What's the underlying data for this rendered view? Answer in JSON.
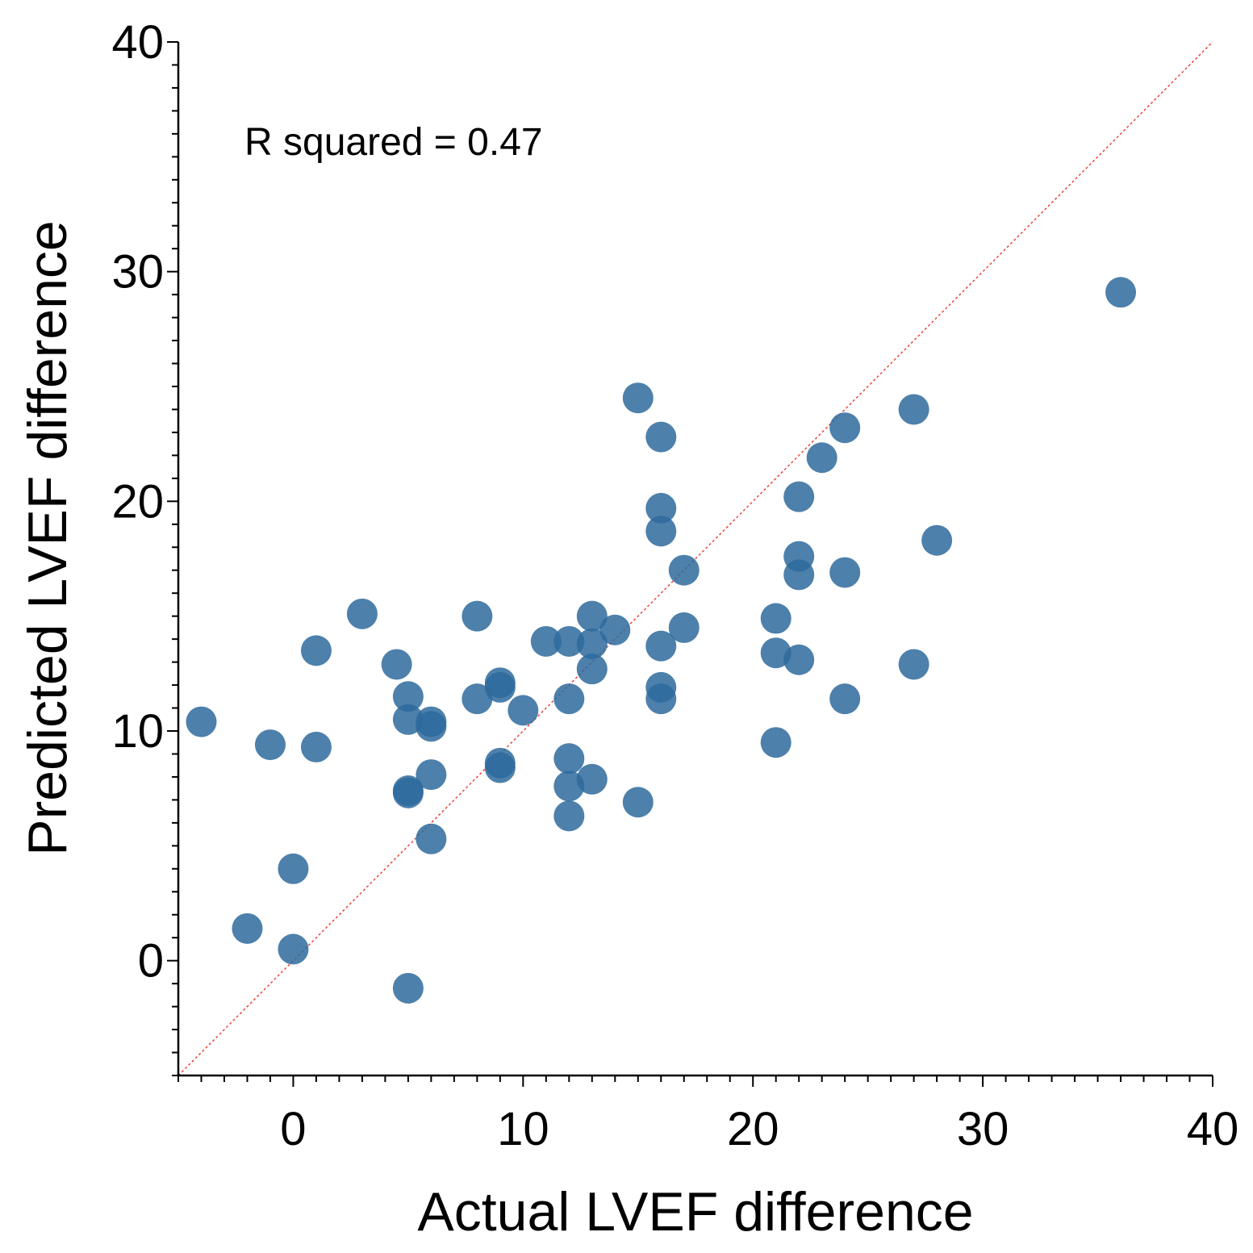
{
  "chart_data": {
    "type": "scatter",
    "xlabel": "Actual LVEF difference",
    "ylabel": "Predicted LVEF difference",
    "xlim": [
      -5,
      40
    ],
    "ylim": [
      -5,
      40
    ],
    "x_ticks": [
      0,
      10,
      20,
      30,
      40
    ],
    "y_ticks": [
      0,
      10,
      20,
      30,
      40
    ],
    "x_tick_labels": [
      "0",
      "10",
      "20",
      "30",
      "40"
    ],
    "y_tick_labels": [
      "0",
      "10",
      "20",
      "30",
      "40"
    ],
    "minor_tick_step": 1,
    "grid": false,
    "annotation": "R squared = 0.47",
    "reference_line": {
      "type": "identity",
      "color": "#e8443a",
      "style": "dotted"
    },
    "marker_color": "#2e6a9c",
    "points": [
      {
        "x": -4,
        "y": 10.4
      },
      {
        "x": -1,
        "y": 9.4
      },
      {
        "x": 1,
        "y": 13.5
      },
      {
        "x": 1,
        "y": 9.3
      },
      {
        "x": 3,
        "y": 15.1
      },
      {
        "x": 0,
        "y": 4.0
      },
      {
        "x": -2,
        "y": 1.4
      },
      {
        "x": 0,
        "y": 0.5
      },
      {
        "x": 4.5,
        "y": 12.9
      },
      {
        "x": 5,
        "y": 11.5
      },
      {
        "x": 5,
        "y": 10.5
      },
      {
        "x": 5,
        "y": 7.4
      },
      {
        "x": 5,
        "y": 7.3
      },
      {
        "x": 5,
        "y": -1.2
      },
      {
        "x": 6,
        "y": 10.4
      },
      {
        "x": 6,
        "y": 10.2
      },
      {
        "x": 6,
        "y": 8.1
      },
      {
        "x": 6,
        "y": 5.3
      },
      {
        "x": 8,
        "y": 15.0
      },
      {
        "x": 8,
        "y": 11.4
      },
      {
        "x": 9,
        "y": 12.1
      },
      {
        "x": 9,
        "y": 11.9
      },
      {
        "x": 9,
        "y": 8.6
      },
      {
        "x": 9,
        "y": 8.4
      },
      {
        "x": 10,
        "y": 10.9
      },
      {
        "x": 11,
        "y": 13.9
      },
      {
        "x": 12,
        "y": 13.9
      },
      {
        "x": 12,
        "y": 11.4
      },
      {
        "x": 12,
        "y": 8.8
      },
      {
        "x": 12,
        "y": 7.6
      },
      {
        "x": 12,
        "y": 6.3
      },
      {
        "x": 13,
        "y": 15.0
      },
      {
        "x": 13,
        "y": 13.8
      },
      {
        "x": 13,
        "y": 12.7
      },
      {
        "x": 13,
        "y": 7.9
      },
      {
        "x": 14,
        "y": 14.4
      },
      {
        "x": 15,
        "y": 24.5
      },
      {
        "x": 15,
        "y": 6.9
      },
      {
        "x": 16,
        "y": 22.8
      },
      {
        "x": 16,
        "y": 19.7
      },
      {
        "x": 16,
        "y": 18.7
      },
      {
        "x": 16,
        "y": 13.7
      },
      {
        "x": 16,
        "y": 11.9
      },
      {
        "x": 16,
        "y": 11.4
      },
      {
        "x": 17,
        "y": 17.0
      },
      {
        "x": 17,
        "y": 14.5
      },
      {
        "x": 21,
        "y": 14.9
      },
      {
        "x": 21,
        "y": 13.4
      },
      {
        "x": 21,
        "y": 9.5
      },
      {
        "x": 22,
        "y": 20.2
      },
      {
        "x": 22,
        "y": 17.6
      },
      {
        "x": 22,
        "y": 16.8
      },
      {
        "x": 22,
        "y": 13.1
      },
      {
        "x": 23,
        "y": 21.9
      },
      {
        "x": 24,
        "y": 23.2
      },
      {
        "x": 24,
        "y": 16.9
      },
      {
        "x": 24,
        "y": 11.4
      },
      {
        "x": 27,
        "y": 24.0
      },
      {
        "x": 27,
        "y": 12.9
      },
      {
        "x": 28,
        "y": 18.3
      },
      {
        "x": 36,
        "y": 29.1
      }
    ]
  }
}
